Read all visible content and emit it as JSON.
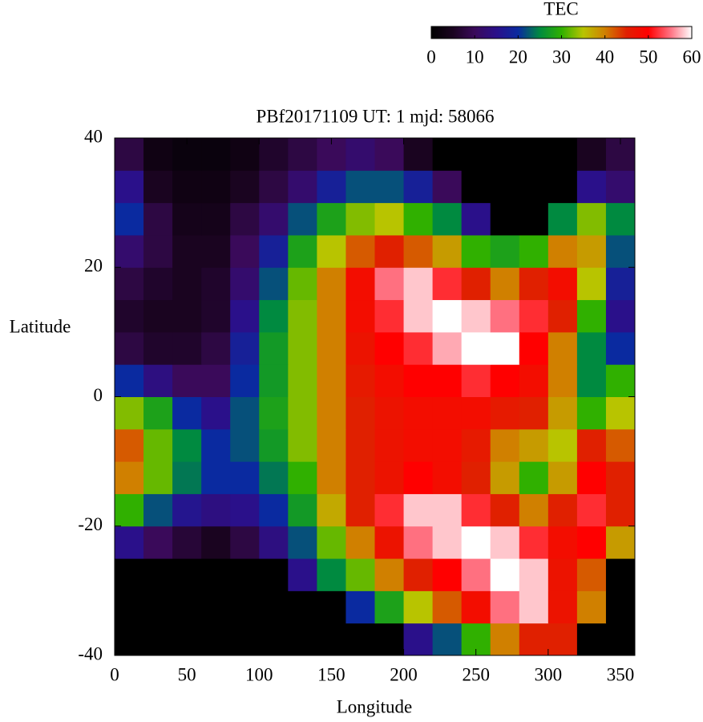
{
  "chart_data": {
    "type": "heatmap",
    "title": "PBf20171109  UT: 1  mjd: 58066",
    "x_label": "Longitude",
    "y_label": "Latitude",
    "colorbar_label": "TEC",
    "xlim": [
      0,
      360
    ],
    "xticks": [
      0,
      50,
      100,
      150,
      200,
      250,
      300,
      350
    ],
    "ylim": [
      -40,
      40
    ],
    "yticks": [
      -40,
      -20,
      0,
      20,
      40
    ],
    "clim": [
      0,
      60
    ],
    "cticks": [
      0,
      10,
      20,
      30,
      40,
      50,
      60
    ],
    "colormap": [
      "#000000",
      "#1a0420",
      "#3a0a5a",
      "#2a108a",
      "#0a2aa0",
      "#008a40",
      "#30b000",
      "#b8c400",
      "#d08000",
      "#e02000",
      "#ff0000",
      "#ff7080",
      "#ffffff"
    ],
    "x": [
      10,
      30,
      50,
      70,
      90,
      110,
      130,
      150,
      170,
      190,
      210,
      230,
      250,
      270,
      290,
      310,
      330,
      350
    ],
    "y": [
      -37.5,
      -32.5,
      -27.5,
      -22.5,
      -17.5,
      -12.5,
      -7.5,
      -2.5,
      2.5,
      7.5,
      12.5,
      17.5,
      22.5,
      27.5,
      32.5,
      37.5
    ],
    "z": [
      [
        0,
        0,
        0,
        0,
        0,
        0,
        0,
        0,
        0,
        0,
        15,
        22,
        30,
        40,
        45,
        45,
        0,
        0
      ],
      [
        0,
        0,
        0,
        0,
        0,
        0,
        0,
        0,
        20,
        28,
        35,
        42,
        48,
        55,
        58,
        47,
        40,
        0
      ],
      [
        0,
        0,
        0,
        0,
        0,
        0,
        15,
        25,
        32,
        40,
        45,
        50,
        55,
        60,
        58,
        47,
        42,
        0
      ],
      [
        15,
        10,
        7,
        5,
        8,
        14,
        22,
        32,
        40,
        47,
        55,
        58,
        60,
        58,
        52,
        48,
        50,
        38
      ],
      [
        30,
        22,
        16,
        14,
        15,
        20,
        27,
        37,
        45,
        52,
        58,
        58,
        52,
        45,
        40,
        45,
        52,
        45
      ],
      [
        40,
        32,
        24,
        20,
        20,
        24,
        30,
        40,
        45,
        47,
        50,
        48,
        45,
        38,
        30,
        38,
        50,
        45
      ],
      [
        42,
        32,
        25,
        20,
        22,
        27,
        33,
        40,
        45,
        47,
        48,
        48,
        46,
        40,
        38,
        35,
        45,
        42
      ],
      [
        33,
        28,
        20,
        15,
        22,
        28,
        33,
        40,
        45,
        47,
        48,
        48,
        48,
        46,
        45,
        38,
        30,
        35
      ],
      [
        20,
        14,
        10,
        10,
        20,
        27,
        33,
        40,
        46,
        48,
        50,
        50,
        52,
        50,
        48,
        40,
        25,
        30
      ],
      [
        8,
        6,
        6,
        8,
        18,
        27,
        33,
        40,
        47,
        50,
        52,
        57,
        60,
        60,
        50,
        40,
        25,
        20
      ],
      [
        6,
        5,
        5,
        6,
        15,
        25,
        33,
        40,
        48,
        52,
        58,
        60,
        58,
        55,
        52,
        45,
        30,
        15
      ],
      [
        8,
        6,
        5,
        6,
        12,
        22,
        32,
        40,
        48,
        55,
        58,
        52,
        45,
        40,
        45,
        48,
        35,
        18
      ],
      [
        12,
        8,
        5,
        5,
        10,
        18,
        28,
        35,
        42,
        45,
        42,
        38,
        30,
        28,
        30,
        40,
        38,
        22
      ],
      [
        20,
        8,
        4,
        4,
        8,
        12,
        22,
        28,
        33,
        35,
        30,
        25,
        15,
        0,
        0,
        25,
        33,
        25
      ],
      [
        15,
        5,
        3,
        3,
        5,
        8,
        12,
        18,
        22,
        22,
        18,
        10,
        0,
        0,
        0,
        0,
        15,
        12
      ],
      [
        8,
        3,
        2,
        2,
        3,
        6,
        8,
        10,
        12,
        10,
        5,
        0,
        0,
        0,
        0,
        0,
        5,
        8
      ]
    ]
  }
}
